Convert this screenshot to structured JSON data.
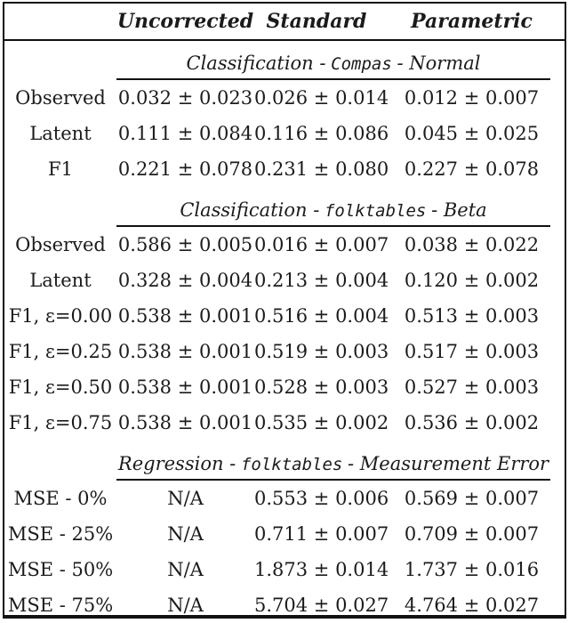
{
  "page": {
    "background": "#ffffff",
    "text_color": "#1b1b1b",
    "rule_color": "#111111"
  },
  "table": {
    "column_headers": [
      "Uncorrected",
      "Standard",
      "Parametric"
    ],
    "sections": [
      {
        "title_prefix": "Classification -",
        "title_mono": "Compas",
        "title_suffix": "- Normal",
        "rows": [
          {
            "label": "Observed",
            "values": [
              "0.032 ± 0.023",
              "0.026 ± 0.014",
              "0.012 ± 0.007"
            ]
          },
          {
            "label": "Latent",
            "values": [
              "0.111 ± 0.084",
              "0.116 ± 0.086",
              "0.045 ± 0.025"
            ]
          },
          {
            "label": "F1",
            "values": [
              "0.221 ± 0.078",
              "0.231 ± 0.080",
              "0.227 ± 0.078"
            ]
          }
        ]
      },
      {
        "title_prefix": "Classification -",
        "title_mono": "folktables",
        "title_suffix": "- Beta",
        "rows": [
          {
            "label": "Observed",
            "values": [
              "0.586 ± 0.005",
              "0.016 ± 0.007",
              "0.038 ± 0.022"
            ]
          },
          {
            "label": "Latent",
            "values": [
              "0.328 ± 0.004",
              "0.213 ± 0.004",
              "0.120 ± 0.002"
            ]
          },
          {
            "label": "F1, ε=0.00",
            "values": [
              "0.538 ± 0.001",
              "0.516 ± 0.004",
              "0.513 ± 0.003"
            ]
          },
          {
            "label": "F1, ε=0.25",
            "values": [
              "0.538 ± 0.001",
              "0.519 ± 0.003",
              "0.517 ± 0.003"
            ]
          },
          {
            "label": "F1, ε=0.50",
            "values": [
              "0.538 ± 0.001",
              "0.528 ± 0.003",
              "0.527 ± 0.003"
            ]
          },
          {
            "label": "F1, ε=0.75",
            "values": [
              "0.538 ± 0.001",
              "0.535 ± 0.002",
              "0.536 ± 0.002"
            ]
          }
        ]
      },
      {
        "title_prefix": "Regression -",
        "title_mono": "folktables",
        "title_suffix": "- Measurement Error",
        "rows": [
          {
            "label": "MSE - 0%",
            "values": [
              "N/A",
              "0.553 ± 0.006",
              "0.569 ± 0.007"
            ]
          },
          {
            "label": "MSE - 25%",
            "values": [
              "N/A",
              "0.711 ± 0.007",
              "0.709 ± 0.007"
            ]
          },
          {
            "label": "MSE - 50%",
            "values": [
              "N/A",
              "1.873 ± 0.014",
              "1.737 ± 0.016"
            ]
          },
          {
            "label": "MSE - 75%",
            "values": [
              "N/A",
              "5.704 ± 0.027",
              "4.764 ± 0.027"
            ]
          }
        ]
      }
    ]
  }
}
